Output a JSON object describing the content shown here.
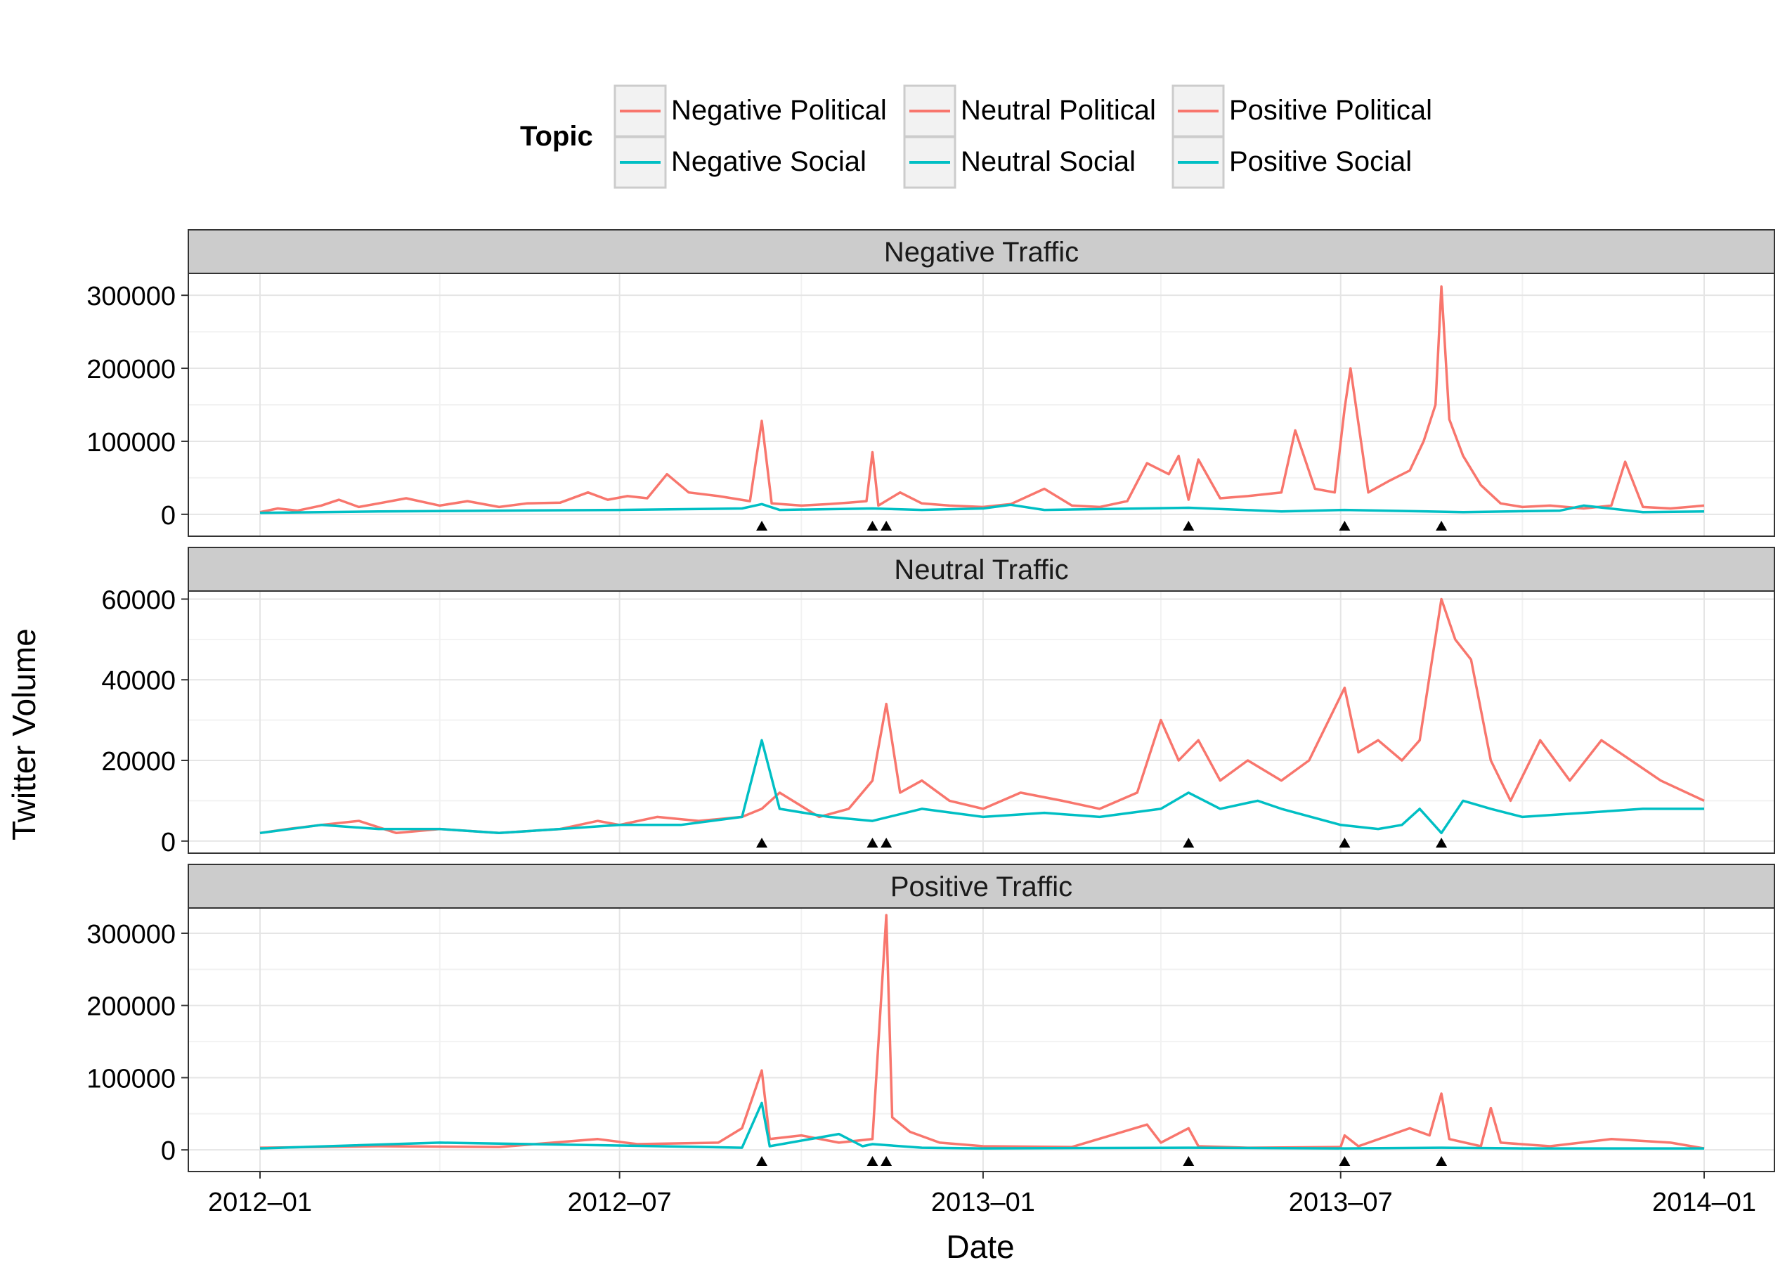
{
  "chart_data": {
    "type": "line",
    "xlabel": "Date",
    "ylabel": "Twitter Volume",
    "x_range": [
      "2012-01-01",
      "2014-01-01"
    ],
    "x_ticks": [
      "2012-01-01",
      "2012-07-01",
      "2013-01-01",
      "2013-07-01",
      "2014-01-01"
    ],
    "x_tick_labels": [
      "2012–01",
      "2012–07",
      "2013–01",
      "2013–07",
      "2014–01"
    ],
    "event_markers": [
      "2012-09-11",
      "2012-11-06",
      "2012-11-13",
      "2013-04-15",
      "2013-07-03",
      "2013-08-21"
    ],
    "grid": true,
    "legend": {
      "position": "top",
      "title": "Topic",
      "entries": [
        {
          "label": "Negative Political",
          "color": "#F8766D"
        },
        {
          "label": "Negative Social",
          "color": "#00BFC4"
        },
        {
          "label": "Neutral Political",
          "color": "#F8766D"
        },
        {
          "label": "Neutral Social",
          "color": "#00BFC4"
        },
        {
          "label": "Positive Political",
          "color": "#F8766D"
        },
        {
          "label": "Positive Social",
          "color": "#00BFC4"
        }
      ]
    },
    "colors": {
      "political": "#F8766D",
      "social": "#00BFC4",
      "strip_bg": "#CCCCCC"
    },
    "panels": [
      {
        "title": "Negative Traffic",
        "ylim": [
          -30000,
          330000
        ],
        "y_ticks": [
          0,
          100000,
          200000,
          300000
        ],
        "y_tick_labels": [
          "0",
          "100000",
          "200000",
          "300000"
        ],
        "series": [
          {
            "name": "Negative Political",
            "color": "#F8766D",
            "x": [
              "2012-01-01",
              "2012-01-10",
              "2012-01-20",
              "2012-02-01",
              "2012-02-10",
              "2012-02-20",
              "2012-03-01",
              "2012-03-15",
              "2012-04-01",
              "2012-04-15",
              "2012-05-01",
              "2012-05-15",
              "2012-06-01",
              "2012-06-15",
              "2012-06-25",
              "2012-07-05",
              "2012-07-15",
              "2012-07-25",
              "2012-08-05",
              "2012-08-20",
              "2012-09-05",
              "2012-09-11",
              "2012-09-16",
              "2012-10-01",
              "2012-10-15",
              "2012-10-25",
              "2012-11-03",
              "2012-11-06",
              "2012-11-09",
              "2012-11-20",
              "2012-12-01",
              "2012-12-15",
              "2013-01-01",
              "2013-01-15",
              "2013-02-01",
              "2013-02-15",
              "2013-03-01",
              "2013-03-15",
              "2013-03-25",
              "2013-04-05",
              "2013-04-10",
              "2013-04-15",
              "2013-04-20",
              "2013-05-01",
              "2013-05-15",
              "2013-06-01",
              "2013-06-08",
              "2013-06-18",
              "2013-06-28",
              "2013-07-03",
              "2013-07-06",
              "2013-07-15",
              "2013-07-25",
              "2013-08-05",
              "2013-08-12",
              "2013-08-18",
              "2013-08-21",
              "2013-08-25",
              "2013-09-01",
              "2013-09-10",
              "2013-09-20",
              "2013-10-01",
              "2013-10-15",
              "2013-11-01",
              "2013-11-15",
              "2013-11-22",
              "2013-12-01",
              "2013-12-15",
              "2014-01-01"
            ],
            "y": [
              3000,
              8000,
              5000,
              12000,
              20000,
              10000,
              15000,
              22000,
              12000,
              18000,
              10000,
              15000,
              16000,
              30000,
              20000,
              25000,
              22000,
              55000,
              30000,
              25000,
              18000,
              128000,
              15000,
              12000,
              14000,
              16000,
              18000,
              85000,
              12000,
              30000,
              15000,
              12000,
              10000,
              14000,
              35000,
              12000,
              10000,
              18000,
              70000,
              55000,
              80000,
              20000,
              75000,
              22000,
              25000,
              30000,
              115000,
              35000,
              30000,
              145000,
              200000,
              30000,
              45000,
              60000,
              100000,
              150000,
              312000,
              130000,
              80000,
              40000,
              15000,
              10000,
              12000,
              8000,
              12000,
              72000,
              10000,
              8000,
              12000
            ]
          },
          {
            "name": "Negative Social",
            "color": "#00BFC4",
            "x": [
              "2012-01-01",
              "2012-03-01",
              "2012-05-01",
              "2012-07-01",
              "2012-09-01",
              "2012-09-11",
              "2012-09-20",
              "2012-11-06",
              "2012-12-01",
              "2013-01-01",
              "2013-01-15",
              "2013-02-01",
              "2013-04-15",
              "2013-06-01",
              "2013-07-03",
              "2013-09-01",
              "2013-10-20",
              "2013-11-01",
              "2013-12-01",
              "2014-01-01"
            ],
            "y": [
              2000,
              4000,
              5000,
              6000,
              8000,
              14000,
              6000,
              8000,
              6000,
              8000,
              13000,
              6000,
              9000,
              4000,
              6000,
              3000,
              5000,
              12000,
              3000,
              4000
            ]
          }
        ]
      },
      {
        "title": "Neutral Traffic",
        "ylim": [
          -3000,
          62000
        ],
        "y_ticks": [
          0,
          20000,
          40000,
          60000
        ],
        "y_tick_labels": [
          "0",
          "20000",
          "40000",
          "60000"
        ],
        "series": [
          {
            "name": "Neutral Political",
            "color": "#F8766D",
            "x": [
              "2012-01-01",
              "2012-01-15",
              "2012-02-01",
              "2012-02-20",
              "2012-03-10",
              "2012-04-01",
              "2012-05-01",
              "2012-06-01",
              "2012-06-20",
              "2012-07-01",
              "2012-07-20",
              "2012-08-10",
              "2012-09-01",
              "2012-09-11",
              "2012-09-20",
              "2012-10-10",
              "2012-10-25",
              "2012-11-06",
              "2012-11-13",
              "2012-11-20",
              "2012-12-01",
              "2012-12-15",
              "2013-01-01",
              "2013-01-20",
              "2013-02-10",
              "2013-03-01",
              "2013-03-20",
              "2013-04-01",
              "2013-04-10",
              "2013-04-20",
              "2013-05-01",
              "2013-05-15",
              "2013-06-01",
              "2013-06-15",
              "2013-06-25",
              "2013-07-03",
              "2013-07-10",
              "2013-07-20",
              "2013-08-01",
              "2013-08-10",
              "2013-08-21",
              "2013-08-28",
              "2013-09-05",
              "2013-09-15",
              "2013-09-25",
              "2013-10-10",
              "2013-10-25",
              "2013-11-10",
              "2013-11-25",
              "2013-12-10",
              "2014-01-01"
            ],
            "y": [
              2000,
              3000,
              4000,
              5000,
              2000,
              3000,
              2000,
              3000,
              5000,
              4000,
              6000,
              5000,
              6000,
              8000,
              12000,
              6000,
              8000,
              15000,
              34000,
              12000,
              15000,
              10000,
              8000,
              12000,
              10000,
              8000,
              12000,
              30000,
              20000,
              25000,
              15000,
              20000,
              15000,
              20000,
              30000,
              38000,
              22000,
              25000,
              20000,
              25000,
              60000,
              50000,
              45000,
              20000,
              10000,
              25000,
              15000,
              25000,
              20000,
              15000,
              10000
            ]
          },
          {
            "name": "Neutral Social",
            "color": "#00BFC4",
            "x": [
              "2012-01-01",
              "2012-02-01",
              "2012-03-01",
              "2012-04-01",
              "2012-05-01",
              "2012-06-01",
              "2012-07-01",
              "2012-08-01",
              "2012-09-01",
              "2012-09-11",
              "2012-09-20",
              "2012-10-15",
              "2012-11-06",
              "2012-12-01",
              "2013-01-01",
              "2013-02-01",
              "2013-03-01",
              "2013-04-01",
              "2013-04-15",
              "2013-05-01",
              "2013-05-20",
              "2013-06-01",
              "2013-07-01",
              "2013-07-20",
              "2013-08-01",
              "2013-08-10",
              "2013-08-21",
              "2013-09-01",
              "2013-09-15",
              "2013-10-01",
              "2013-11-01",
              "2013-12-01",
              "2014-01-01"
            ],
            "y": [
              2000,
              4000,
              3000,
              3000,
              2000,
              3000,
              4000,
              4000,
              6000,
              25000,
              8000,
              6000,
              5000,
              8000,
              6000,
              7000,
              6000,
              8000,
              12000,
              8000,
              10000,
              8000,
              4000,
              3000,
              4000,
              8000,
              2000,
              10000,
              8000,
              6000,
              7000,
              8000,
              8000
            ]
          }
        ]
      },
      {
        "title": "Positive Traffic",
        "ylim": [
          -30000,
          335000
        ],
        "y_ticks": [
          0,
          100000,
          200000,
          300000
        ],
        "y_tick_labels": [
          "0",
          "100000",
          "200000",
          "300000"
        ],
        "series": [
          {
            "name": "Positive Political",
            "color": "#F8766D",
            "x": [
              "2012-01-01",
              "2012-03-01",
              "2012-05-01",
              "2012-06-20",
              "2012-07-10",
              "2012-08-20",
              "2012-09-01",
              "2012-09-11",
              "2012-09-15",
              "2012-10-01",
              "2012-10-20",
              "2012-11-06",
              "2012-11-13",
              "2012-11-16",
              "2012-11-25",
              "2012-12-10",
              "2013-01-01",
              "2013-02-15",
              "2013-03-25",
              "2013-04-01",
              "2013-04-15",
              "2013-04-20",
              "2013-05-15",
              "2013-07-01",
              "2013-07-03",
              "2013-07-10",
              "2013-08-05",
              "2013-08-15",
              "2013-08-21",
              "2013-08-25",
              "2013-09-10",
              "2013-09-15",
              "2013-09-20",
              "2013-10-15",
              "2013-11-15",
              "2013-12-15",
              "2014-01-01"
            ],
            "y": [
              3000,
              5000,
              4000,
              15000,
              8000,
              10000,
              30000,
              110000,
              15000,
              20000,
              10000,
              15000,
              325000,
              45000,
              25000,
              10000,
              5000,
              4000,
              35000,
              10000,
              30000,
              5000,
              3000,
              4000,
              20000,
              5000,
              30000,
              20000,
              78000,
              15000,
              5000,
              58000,
              10000,
              5000,
              15000,
              10000,
              2000
            ]
          },
          {
            "name": "Positive Social",
            "color": "#00BFC4",
            "x": [
              "2012-01-01",
              "2012-04-01",
              "2012-07-01",
              "2012-09-01",
              "2012-09-11",
              "2012-09-15",
              "2012-10-20",
              "2012-11-01",
              "2012-11-06",
              "2012-12-01",
              "2013-01-01",
              "2013-04-15",
              "2013-07-03",
              "2013-08-21",
              "2013-10-01",
              "2014-01-01"
            ],
            "y": [
              2000,
              10000,
              6000,
              3000,
              65000,
              5000,
              22000,
              5000,
              8000,
              3000,
              2000,
              3000,
              2000,
              3000,
              2000,
              2000
            ]
          }
        ]
      }
    ]
  }
}
